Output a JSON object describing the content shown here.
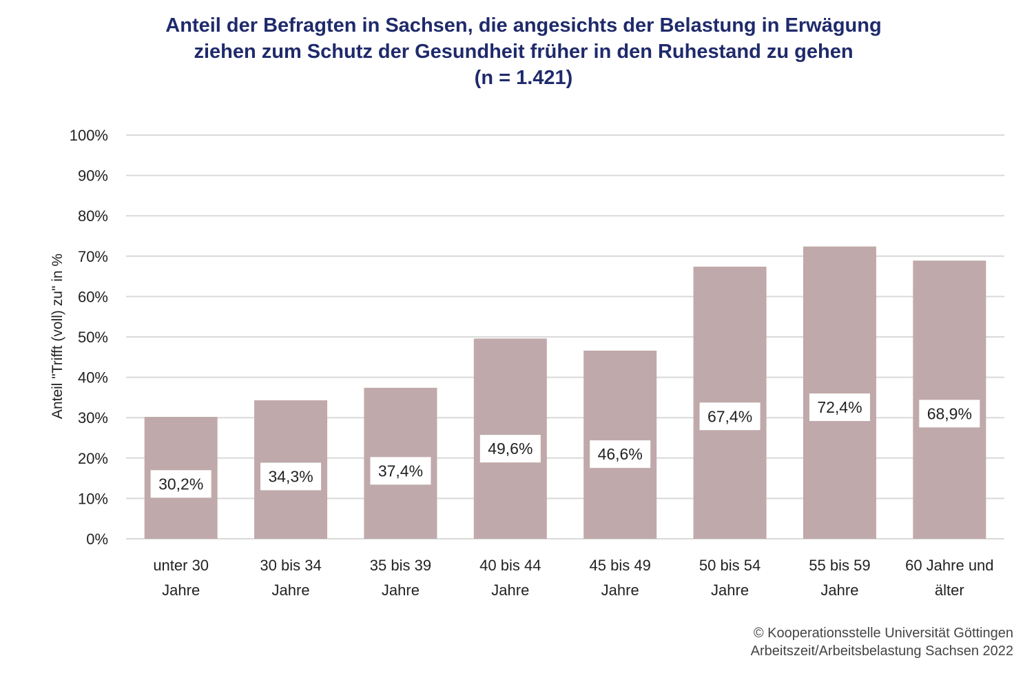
{
  "chart_data": {
    "type": "bar",
    "title_lines": [
      "Anteil der Befragten in Sachsen, die angesichts der Belastung in Erwägung",
      "ziehen zum Schutz der Gesundheit früher in den Ruhestand zu gehen",
      "(n = 1.421)"
    ],
    "categories": [
      [
        "unter 30",
        "Jahre"
      ],
      [
        "30 bis 34",
        "Jahre"
      ],
      [
        "35 bis 39",
        "Jahre"
      ],
      [
        "40 bis 44",
        "Jahre"
      ],
      [
        "45 bis 49",
        "Jahre"
      ],
      [
        "50 bis 54",
        "Jahre"
      ],
      [
        "55 bis 59",
        "Jahre"
      ],
      [
        "60 Jahre und",
        "älter"
      ]
    ],
    "values": [
      30.2,
      34.3,
      37.4,
      49.6,
      46.6,
      67.4,
      72.4,
      68.9
    ],
    "data_labels": [
      "30,2%",
      "34,3%",
      "37,4%",
      "49,6%",
      "46,6%",
      "67,4%",
      "72,4%",
      "68,9%"
    ],
    "xlabel": "",
    "ylabel": "Anteil \"Trifft (voll) zu\" in %",
    "ylim": [
      0,
      100
    ],
    "yticks": [
      0,
      10,
      20,
      30,
      40,
      50,
      60,
      70,
      80,
      90,
      100
    ],
    "ytick_labels": [
      "0%",
      "10%",
      "20%",
      "30%",
      "40%",
      "50%",
      "60%",
      "70%",
      "80%",
      "90%",
      "100%"
    ],
    "grid": true,
    "legend": "none",
    "bar_color": "#c0a9aa",
    "title_color": "#1f2a6b"
  },
  "footer": {
    "line1": "© Kooperationsstelle Universität Göttingen",
    "line2": "Arbeitszeit/Arbeitsbelastung Sachsen 2022"
  }
}
